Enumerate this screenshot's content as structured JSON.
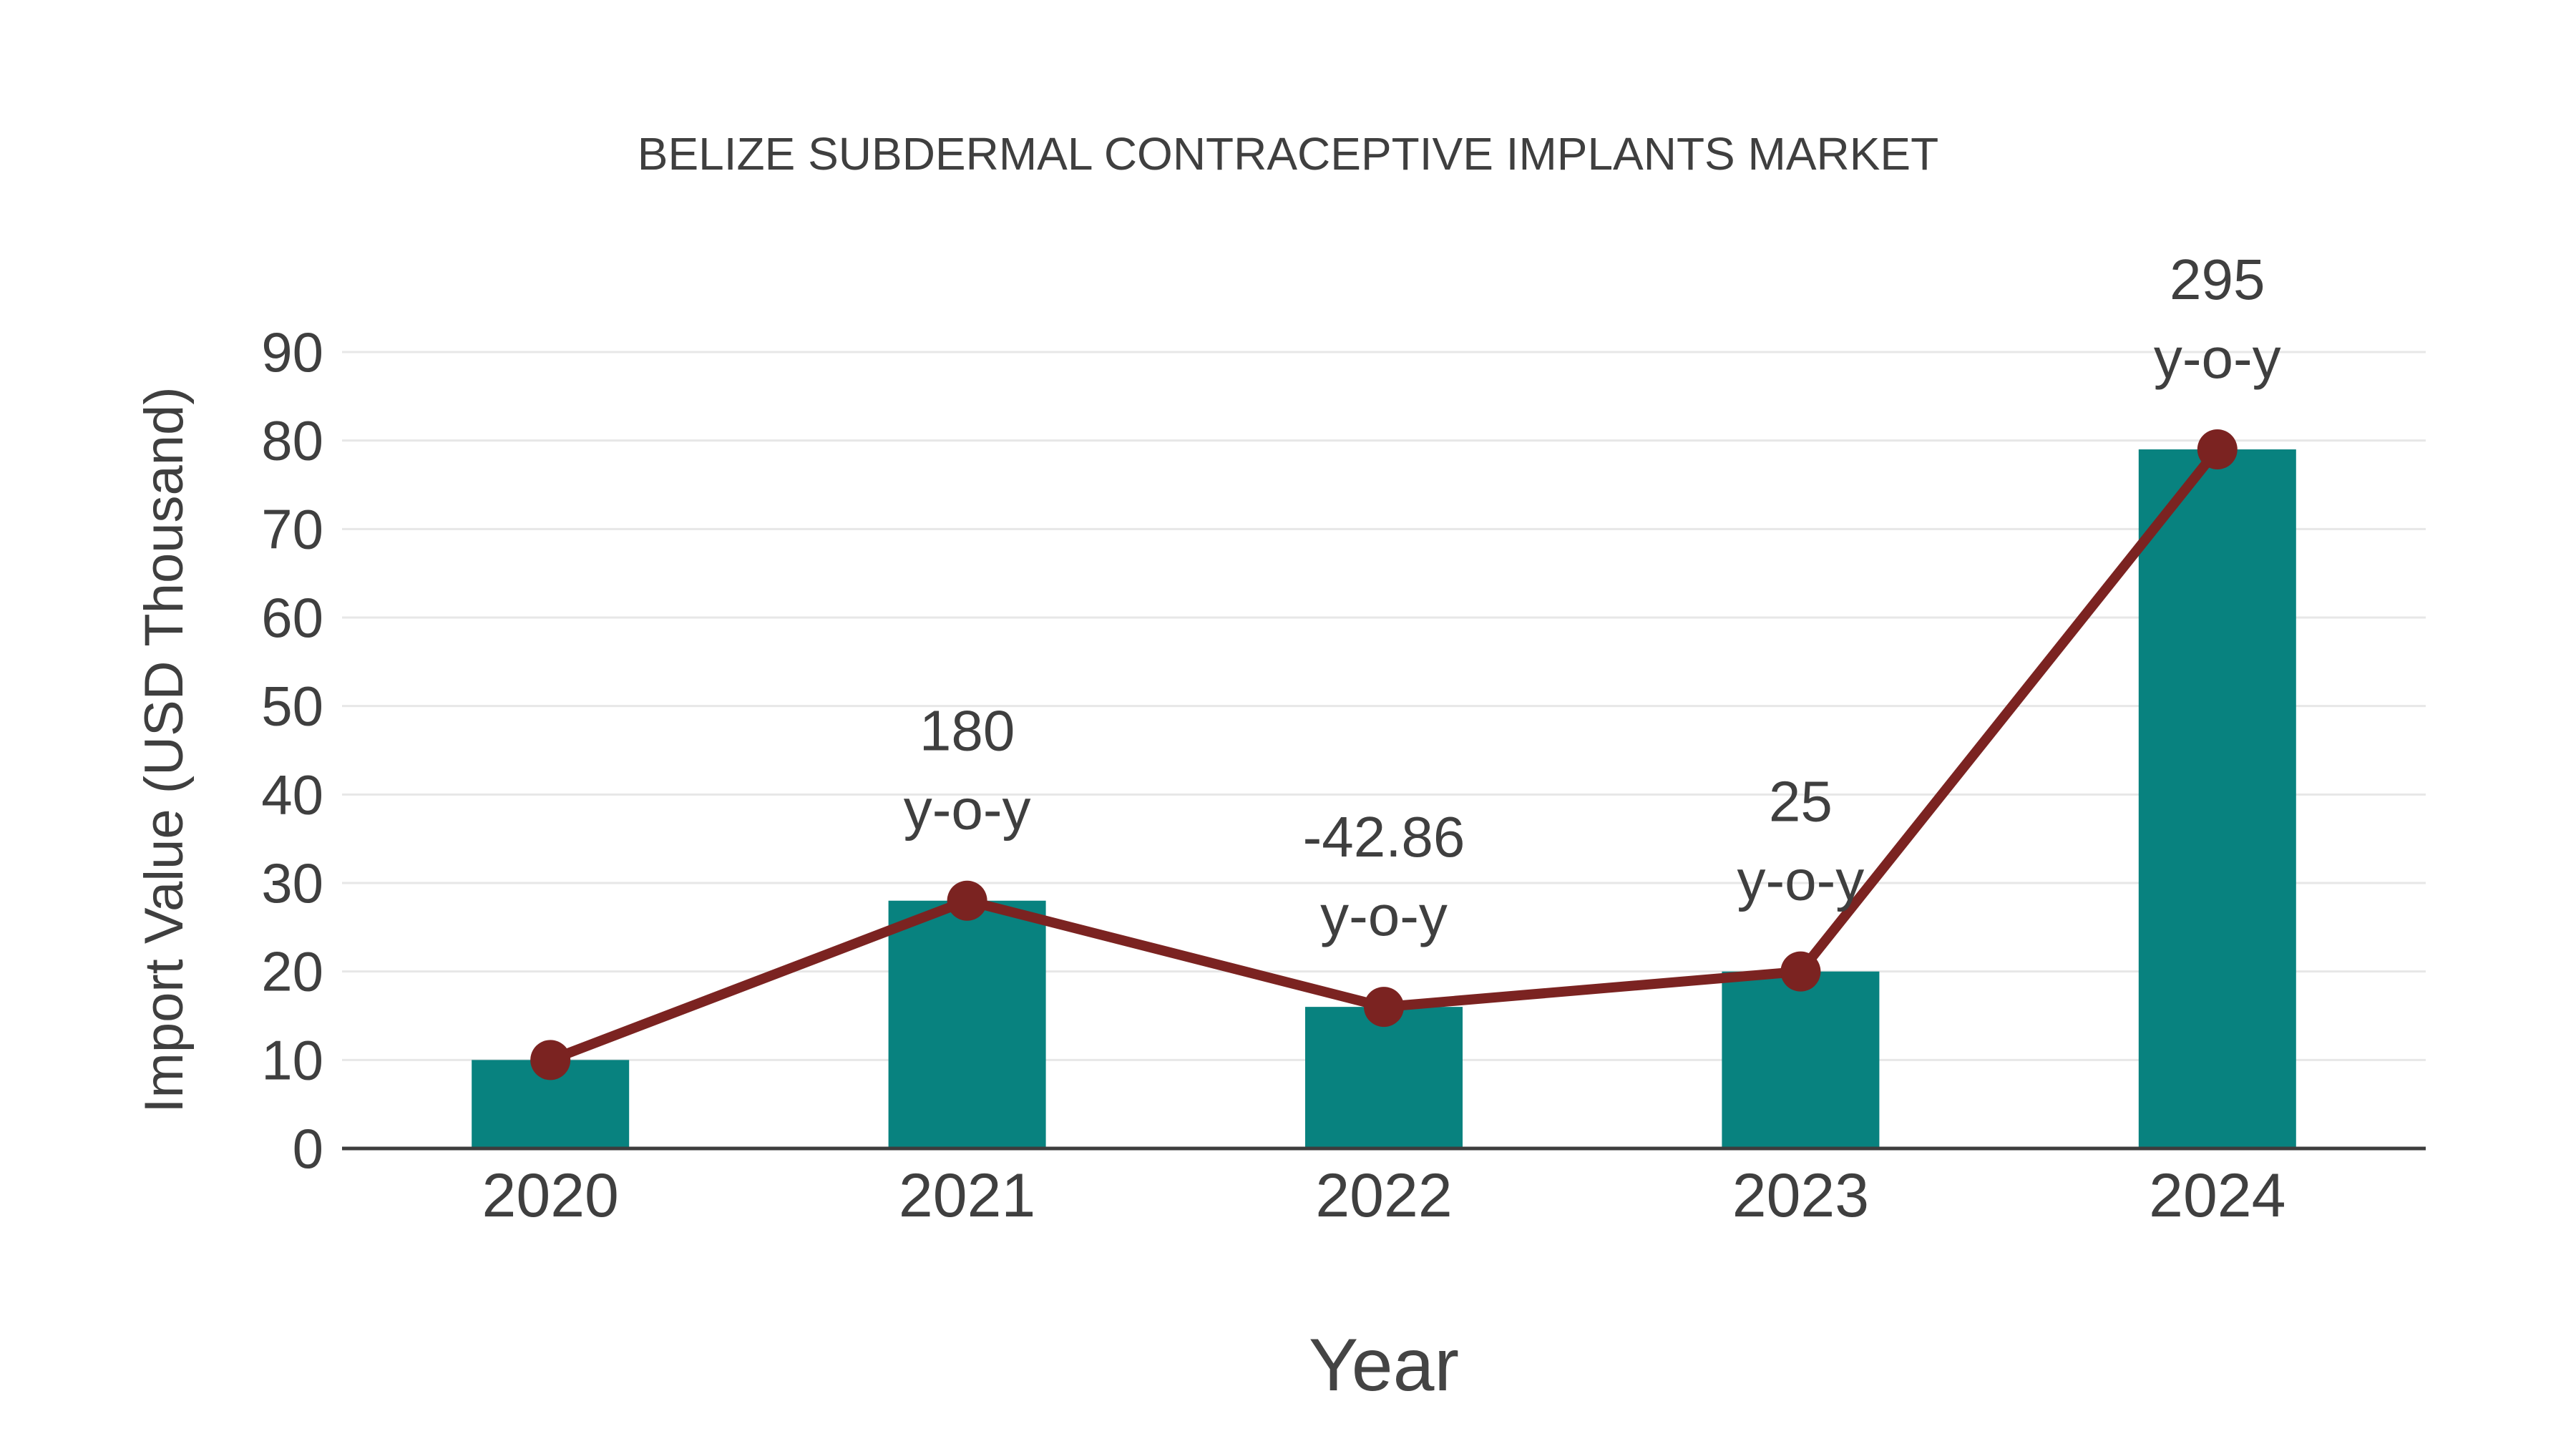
{
  "page": {
    "background": "#ffffff"
  },
  "chart_data": {
    "type": "bar",
    "title": "BELIZE SUBDERMAL CONTRACEPTIVE IMPLANTS MARKET",
    "xlabel": "Year",
    "ylabel": "Import Value (USD Thousand)",
    "categories": [
      "2020",
      "2021",
      "2022",
      "2023",
      "2024"
    ],
    "series": [
      {
        "name": "Import Value bars",
        "type": "bar",
        "color": "#08827F",
        "values": [
          10,
          28,
          16,
          20,
          79
        ]
      },
      {
        "name": "Import Value trend line",
        "type": "line",
        "color": "#7B2321",
        "values": [
          10,
          28,
          16,
          20,
          79
        ]
      }
    ],
    "annotations": [
      {
        "category": "2021",
        "value": "180",
        "suffix": "y-o-y"
      },
      {
        "category": "2022",
        "value": "-42.86",
        "suffix": "y-o-y"
      },
      {
        "category": "2023",
        "value": "25",
        "suffix": "y-o-y"
      },
      {
        "category": "2024",
        "value": "295",
        "suffix": "y-o-y"
      }
    ],
    "yticks": [
      0,
      10,
      20,
      30,
      40,
      50,
      60,
      70,
      80,
      90
    ],
    "ylim": [
      0,
      90
    ],
    "grid": true,
    "legend": "none",
    "colors": {
      "bar": "#08827F",
      "line": "#7B2321",
      "marker": "#7B2321",
      "gridline": "#e7e7e7",
      "axis_line": "#3d3d3d",
      "text": "#3f3f3f"
    }
  }
}
